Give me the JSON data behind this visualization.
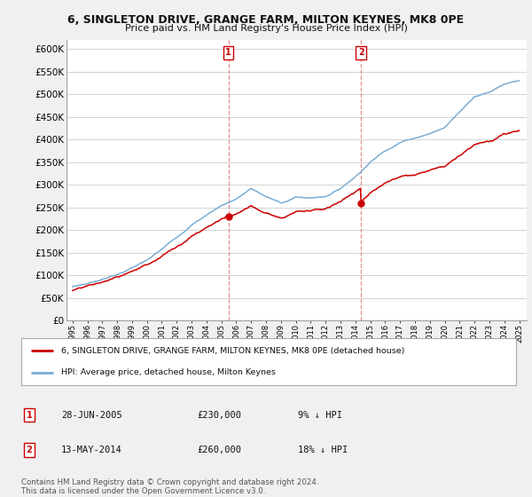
{
  "title": "6, SINGLETON DRIVE, GRANGE FARM, MILTON KEYNES, MK8 0PE",
  "subtitle": "Price paid vs. HM Land Registry's House Price Index (HPI)",
  "legend_line1": "6, SINGLETON DRIVE, GRANGE FARM, MILTON KEYNES, MK8 0PE (detached house)",
  "legend_line2": "HPI: Average price, detached house, Milton Keynes",
  "annotation1_text_col1": "28-JUN-2005",
  "annotation1_text_col2": "£230,000",
  "annotation1_text_col3": "9% ↓ HPI",
  "annotation2_text_col1": "13-MAY-2014",
  "annotation2_text_col2": "£260,000",
  "annotation2_text_col3": "18% ↓ HPI",
  "sale1_year": 2005.49,
  "sale1_price": 230000,
  "sale2_year": 2014.37,
  "sale2_price": 260000,
  "ylim": [
    0,
    620000
  ],
  "price_color": "#cc0000",
  "hpi_color": "#7aadd4",
  "vline_color": "#cc0000",
  "footer": "Contains HM Land Registry data © Crown copyright and database right 2024.\nThis data is licensed under the Open Government Licence v3.0.",
  "background_color": "#f0f0f0",
  "plot_bg_color": "#ffffff"
}
